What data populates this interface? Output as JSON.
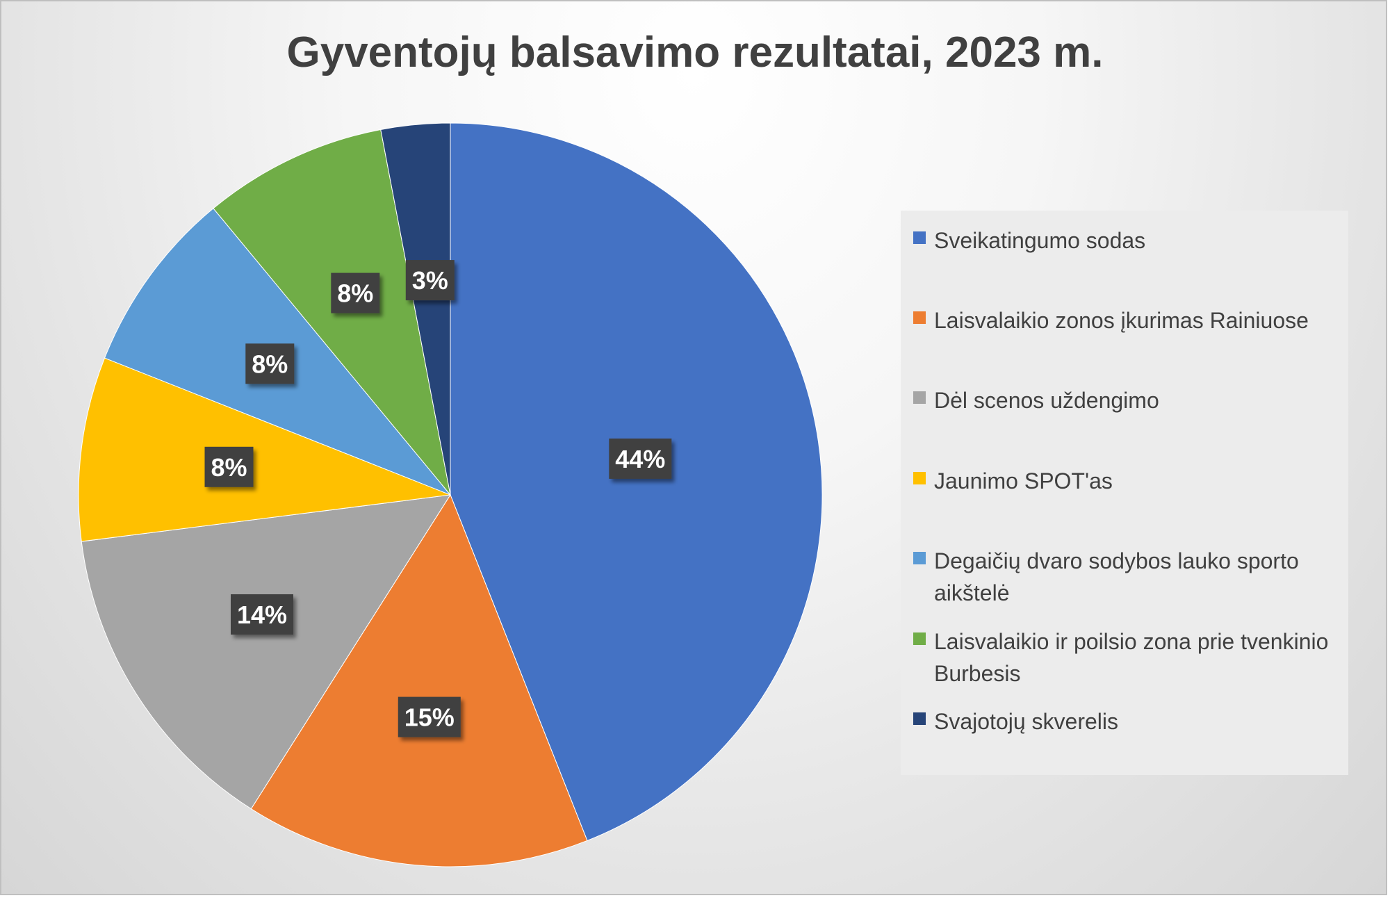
{
  "chart_data": {
    "type": "pie",
    "title": "Gyventojų balsavimo rezultatai, 2023 m.",
    "categories": [
      "Sveikatingumo sodas",
      "Laisvalaikio zonos įkurimas Rainiuose",
      "Dėl scenos uždengimo",
      "Jaunimo SPOT'as",
      "Degaičių dvaro sodybos lauko sporto aikštelė",
      "Laisvalaikio ir poilsio zona prie tvenkinio Burbesis",
      "Svajotojų skverelis"
    ],
    "values": [
      44,
      15,
      14,
      8,
      8,
      8,
      3
    ],
    "labels": [
      "44%",
      "15%",
      "14%",
      "8%",
      "8%",
      "8%",
      "3%"
    ],
    "colors": [
      "#4472c4",
      "#ed7d31",
      "#a5a5a5",
      "#ffc000",
      "#5b9bd5",
      "#70ad47",
      "#264478"
    ],
    "legend_position": "right"
  }
}
